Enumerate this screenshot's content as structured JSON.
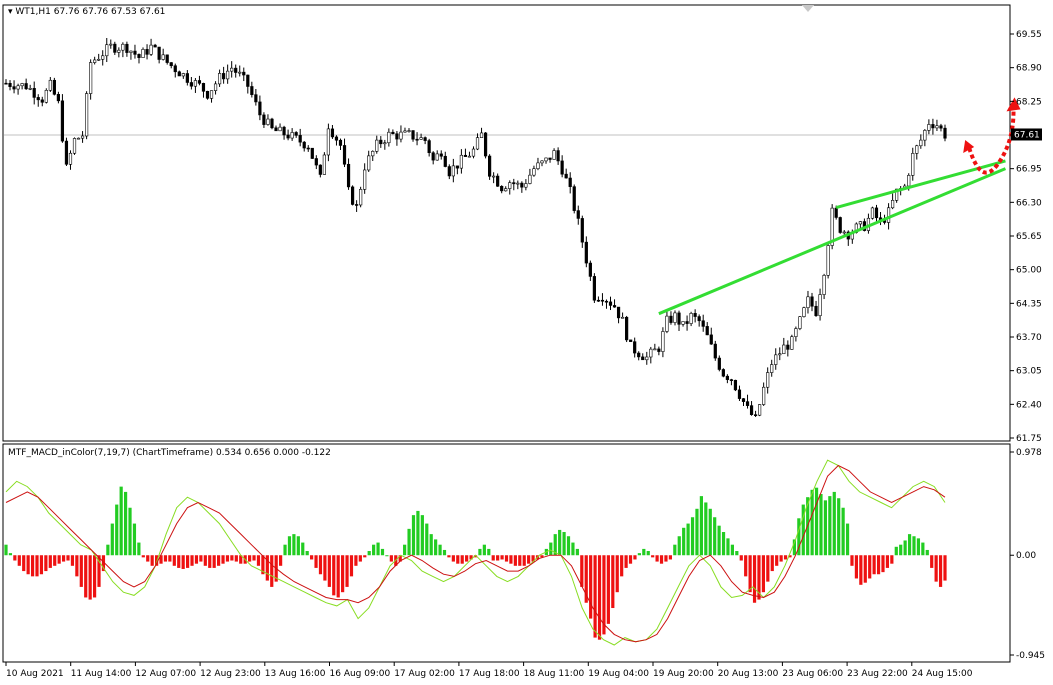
{
  "header": {
    "symbol": "WT1,H1",
    "ohlc": "67.76 67.76 67.53 67.61"
  },
  "indicator": {
    "title": "MTF_MACD_inColor(7,19,7) (ChartTimeframe) 0.534 0.656 0.000 -0.122"
  },
  "colors": {
    "candle": "#000000",
    "trendline": "#33dd33",
    "arrow": "#ee1111",
    "hist_up": "#22cc22",
    "hist_down": "#ee1111",
    "macd_line": "#88dd22",
    "signal_line": "#cc1111",
    "price_line": "#c0c0c0"
  },
  "chart_data": [
    {
      "type": "candlestick",
      "symbol": "WT1",
      "timeframe": "H1",
      "ylim": [
        61.75,
        69.8
      ],
      "y_ticks": [
        "69.55",
        "68.90",
        "68.25",
        "67.60",
        "66.95",
        "66.30",
        "65.65",
        "65.00",
        "64.35",
        "63.70",
        "63.05",
        "62.40",
        "61.75"
      ],
      "current_price": "67.61",
      "x_labels": [
        "10 Aug 2021",
        "11 Aug 14:00",
        "12 Aug 07:00",
        "12 Aug 23:00",
        "13 Aug 16:00",
        "16 Aug 09:00",
        "17 Aug 02:00",
        "17 Aug 18:00",
        "18 Aug 11:00",
        "19 Aug 04:00",
        "19 Aug 20:00",
        "20 Aug 13:00",
        "23 Aug 06:00",
        "23 Aug 22:00",
        "24 Aug 15:00"
      ],
      "path": [
        [
          0,
          68.6
        ],
        [
          5,
          68.55
        ],
        [
          9,
          68.3
        ],
        [
          11,
          68.55
        ],
        [
          13,
          68.2
        ],
        [
          15,
          66.95
        ],
        [
          17,
          67.5
        ],
        [
          19,
          67.6
        ],
        [
          21,
          69.0
        ],
        [
          26,
          69.3
        ],
        [
          30,
          69.3
        ],
        [
          33,
          69.1
        ],
        [
          36,
          69.3
        ],
        [
          40,
          69.0
        ],
        [
          45,
          68.7
        ],
        [
          48,
          68.55
        ],
        [
          50,
          68.4
        ],
        [
          53,
          68.7
        ],
        [
          56,
          68.9
        ],
        [
          58,
          68.75
        ],
        [
          60,
          68.55
        ],
        [
          63,
          68.0
        ],
        [
          66,
          67.7
        ],
        [
          70,
          67.6
        ],
        [
          75,
          67.4
        ],
        [
          78,
          66.75
        ],
        [
          80,
          67.8
        ],
        [
          83,
          67.4
        ],
        [
          85,
          66.5
        ],
        [
          87,
          66.2
        ],
        [
          89,
          67.0
        ],
        [
          92,
          67.4
        ],
        [
          95,
          67.6
        ],
        [
          100,
          67.6
        ],
        [
          104,
          67.5
        ],
        [
          106,
          67.1
        ],
        [
          108,
          67.3
        ],
        [
          110,
          66.9
        ],
        [
          113,
          67.1
        ],
        [
          116,
          67.3
        ],
        [
          118,
          67.6
        ],
        [
          120,
          66.9
        ],
        [
          123,
          66.6
        ],
        [
          125,
          66.7
        ],
        [
          128,
          66.6
        ],
        [
          131,
          66.95
        ],
        [
          134,
          67.1
        ],
        [
          136,
          67.25
        ],
        [
          138,
          66.95
        ],
        [
          140,
          66.5
        ],
        [
          142,
          65.9
        ],
        [
          144,
          65.2
        ],
        [
          146,
          64.5
        ],
        [
          148,
          64.5
        ],
        [
          151,
          64.3
        ],
        [
          153,
          64.0
        ],
        [
          155,
          63.5
        ],
        [
          157,
          63.4
        ],
        [
          159,
          63.3
        ],
        [
          162,
          63.5
        ],
        [
          164,
          64.0
        ],
        [
          166,
          64.1
        ],
        [
          168,
          63.9
        ],
        [
          170,
          64.1
        ],
        [
          172,
          64.0
        ],
        [
          174,
          63.7
        ],
        [
          176,
          63.3
        ],
        [
          178,
          63.0
        ],
        [
          180,
          62.9
        ],
        [
          182,
          62.6
        ],
        [
          184,
          62.3
        ],
        [
          186,
          62.1
        ],
        [
          188,
          62.7
        ],
        [
          190,
          63.2
        ],
        [
          193,
          63.5
        ],
        [
          195,
          63.6
        ],
        [
          197,
          64.0
        ],
        [
          199,
          64.4
        ],
        [
          201,
          64.2
        ],
        [
          203,
          65.0
        ],
        [
          205,
          66.1
        ],
        [
          207,
          65.8
        ],
        [
          209,
          65.7
        ],
        [
          211,
          65.8
        ],
        [
          213,
          65.85
        ],
        [
          215,
          66.1
        ],
        [
          217,
          65.9
        ],
        [
          219,
          66.1
        ],
        [
          221,
          66.5
        ],
        [
          223,
          66.6
        ],
        [
          225,
          67.2
        ],
        [
          227,
          67.5
        ],
        [
          229,
          67.85
        ],
        [
          231,
          67.8
        ],
        [
          233,
          67.61
        ]
      ],
      "trendlines": [
        {
          "from": [
            162,
            64.15
          ],
          "to": [
            248,
            66.95
          ]
        },
        {
          "from": [
            206,
            66.2
          ],
          "to": [
            248,
            67.1
          ]
        }
      ],
      "arrow": {
        "from": [
          239,
          67.35
        ],
        "via": [
          242,
          66.95
        ],
        "to": [
          250,
          68.25
        ]
      }
    },
    {
      "type": "macd_histogram",
      "y_ticks": [
        "0.978",
        "0.00",
        "-0.945"
      ],
      "ylim": [
        -0.945,
        0.978
      ],
      "histogram": [
        0.1,
        0.02,
        -0.05,
        -0.1,
        -0.15,
        -0.18,
        -0.2,
        -0.2,
        -0.18,
        -0.15,
        -0.12,
        -0.1,
        -0.08,
        -0.06,
        -0.05,
        -0.1,
        -0.2,
        -0.3,
        -0.4,
        -0.42,
        -0.4,
        -0.3,
        -0.15,
        0.1,
        0.3,
        0.48,
        0.65,
        0.6,
        0.45,
        0.3,
        0.12,
        -0.02,
        -0.06,
        -0.1,
        -0.1,
        -0.08,
        -0.06,
        -0.06,
        -0.1,
        -0.12,
        -0.13,
        -0.12,
        -0.1,
        -0.08,
        -0.06,
        -0.1,
        -0.12,
        -0.12,
        -0.1,
        -0.08,
        -0.06,
        -0.05,
        -0.06,
        -0.08,
        -0.08,
        -0.06,
        -0.05,
        -0.1,
        -0.18,
        -0.24,
        -0.3,
        -0.25,
        -0.1,
        0.1,
        0.18,
        0.2,
        0.18,
        0.12,
        0.04,
        -0.04,
        -0.12,
        -0.18,
        -0.24,
        -0.3,
        -0.38,
        -0.4,
        -0.35,
        -0.3,
        -0.2,
        -0.1,
        -0.06,
        -0.02,
        0.04,
        0.1,
        0.12,
        0.06,
        0.0,
        -0.06,
        -0.1,
        -0.06,
        0.1,
        0.25,
        0.38,
        0.42,
        0.38,
        0.3,
        0.2,
        0.15,
        0.1,
        0.05,
        -0.02,
        -0.06,
        -0.08,
        -0.08,
        -0.06,
        -0.04,
        -0.02,
        0.06,
        0.1,
        0.06,
        -0.05,
        -0.05,
        -0.04,
        -0.06,
        -0.08,
        -0.1,
        -0.1,
        -0.1,
        -0.08,
        -0.06,
        -0.04,
        -0.02,
        0.06,
        0.12,
        0.2,
        0.24,
        0.22,
        0.18,
        0.12,
        0.06,
        -0.3,
        -0.45,
        -0.6,
        -0.78,
        -0.8,
        -0.75,
        -0.65,
        -0.5,
        -0.35,
        -0.2,
        -0.12,
        -0.08,
        -0.04,
        0.02,
        0.06,
        0.04,
        -0.02,
        -0.06,
        -0.08,
        -0.06,
        -0.04,
        0.1,
        0.18,
        0.26,
        0.3,
        0.36,
        0.44,
        0.56,
        0.5,
        0.44,
        0.36,
        0.28,
        0.22,
        0.16,
        0.1,
        0.04,
        -0.05,
        -0.2,
        -0.35,
        -0.45,
        -0.42,
        -0.35,
        -0.25,
        -0.15,
        -0.1,
        -0.06,
        -0.04,
        -0.02,
        0.15,
        0.35,
        0.48,
        0.55,
        0.62,
        0.64,
        0.58,
        0.52,
        0.56,
        0.6,
        0.54,
        0.45,
        0.3,
        -0.1,
        -0.22,
        -0.28,
        -0.26,
        -0.22,
        -0.18,
        -0.18,
        -0.16,
        -0.12,
        -0.08,
        0.08,
        0.1,
        0.14,
        0.2,
        0.18,
        0.16,
        0.12,
        0.05,
        -0.12,
        -0.25,
        -0.3,
        -0.24
      ],
      "macd_line": [
        0.6,
        0.7,
        0.65,
        0.55,
        0.4,
        0.3,
        0.2,
        0.1,
        0.05,
        -0.1,
        -0.25,
        -0.35,
        -0.38,
        -0.3,
        -0.1,
        0.2,
        0.45,
        0.55,
        0.5,
        0.4,
        0.3,
        0.15,
        0.0,
        -0.1,
        -0.15,
        -0.2,
        -0.25,
        -0.3,
        -0.35,
        -0.4,
        -0.45,
        -0.48,
        -0.42,
        -0.6,
        -0.5,
        -0.3,
        -0.1,
        0.0,
        -0.05,
        -0.15,
        -0.2,
        -0.25,
        -0.2,
        -0.1,
        0.0,
        -0.1,
        -0.2,
        -0.25,
        -0.2,
        -0.1,
        0.0,
        0.05,
        0.0,
        -0.2,
        -0.5,
        -0.7,
        -0.8,
        -0.85,
        -0.78,
        -0.82,
        -0.8,
        -0.7,
        -0.5,
        -0.3,
        -0.1,
        0.0,
        -0.1,
        -0.3,
        -0.4,
        -0.38,
        -0.3,
        -0.4,
        -0.3,
        -0.1,
        0.15,
        0.45,
        0.7,
        0.9,
        0.85,
        0.7,
        0.6,
        0.55,
        0.5,
        0.45,
        0.55,
        0.65,
        0.7,
        0.65,
        0.5
      ],
      "signal_line": [
        0.5,
        0.55,
        0.6,
        0.55,
        0.45,
        0.35,
        0.25,
        0.15,
        0.05,
        -0.05,
        -0.15,
        -0.25,
        -0.3,
        -0.25,
        -0.1,
        0.1,
        0.3,
        0.45,
        0.5,
        0.45,
        0.4,
        0.3,
        0.2,
        0.1,
        0.0,
        -0.1,
        -0.18,
        -0.25,
        -0.3,
        -0.35,
        -0.4,
        -0.42,
        -0.42,
        -0.45,
        -0.4,
        -0.3,
        -0.15,
        -0.05,
        0.0,
        -0.05,
        -0.12,
        -0.18,
        -0.2,
        -0.15,
        -0.08,
        -0.05,
        -0.1,
        -0.15,
        -0.15,
        -0.1,
        -0.03,
        0.0,
        0.0,
        -0.1,
        -0.3,
        -0.5,
        -0.65,
        -0.75,
        -0.8,
        -0.82,
        -0.8,
        -0.75,
        -0.6,
        -0.4,
        -0.2,
        -0.05,
        0.0,
        -0.1,
        -0.25,
        -0.35,
        -0.38,
        -0.4,
        -0.35,
        -0.2,
        0.0,
        0.25,
        0.5,
        0.75,
        0.85,
        0.8,
        0.7,
        0.6,
        0.55,
        0.5,
        0.55,
        0.6,
        0.65,
        0.62,
        0.55
      ]
    }
  ]
}
